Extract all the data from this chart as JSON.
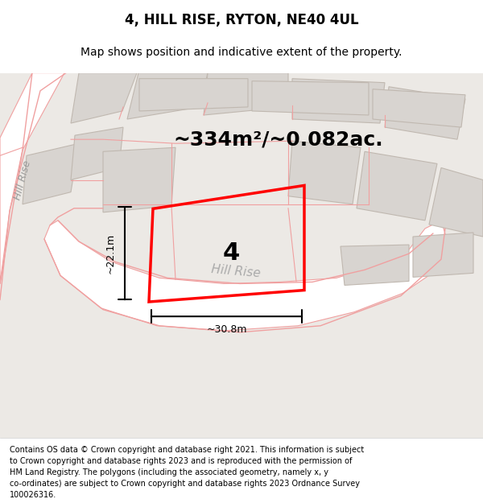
{
  "title": "4, HILL RISE, RYTON, NE40 4UL",
  "subtitle": "Map shows position and indicative extent of the property.",
  "area_text": "~334m²/~0.082ac.",
  "width_label": "~30.8m",
  "height_label": "~22.1m",
  "plot_number": "4",
  "street_label_bottom": "Hill Rise",
  "street_label_left": "Hill Rise",
  "footer_lines": [
    "Contains OS data © Crown copyright and database right 2021. This information is subject",
    "to Crown copyright and database rights 2023 and is reproduced with the permission of",
    "HM Land Registry. The polygons (including the associated geometry, namely x, y",
    "co-ordinates) are subject to Crown copyright and database rights 2023 Ordnance Survey",
    "100026316."
  ],
  "bg_color": "#ece9e5",
  "road_color": "#ffffff",
  "road_stroke": "#f0a0a0",
  "building_fill": "#d8d4d0",
  "building_stroke": "#c0b8b0",
  "title_fontsize": 12,
  "subtitle_fontsize": 10,
  "area_fontsize": 18,
  "label_fontsize": 9,
  "plot_label_fontsize": 22
}
